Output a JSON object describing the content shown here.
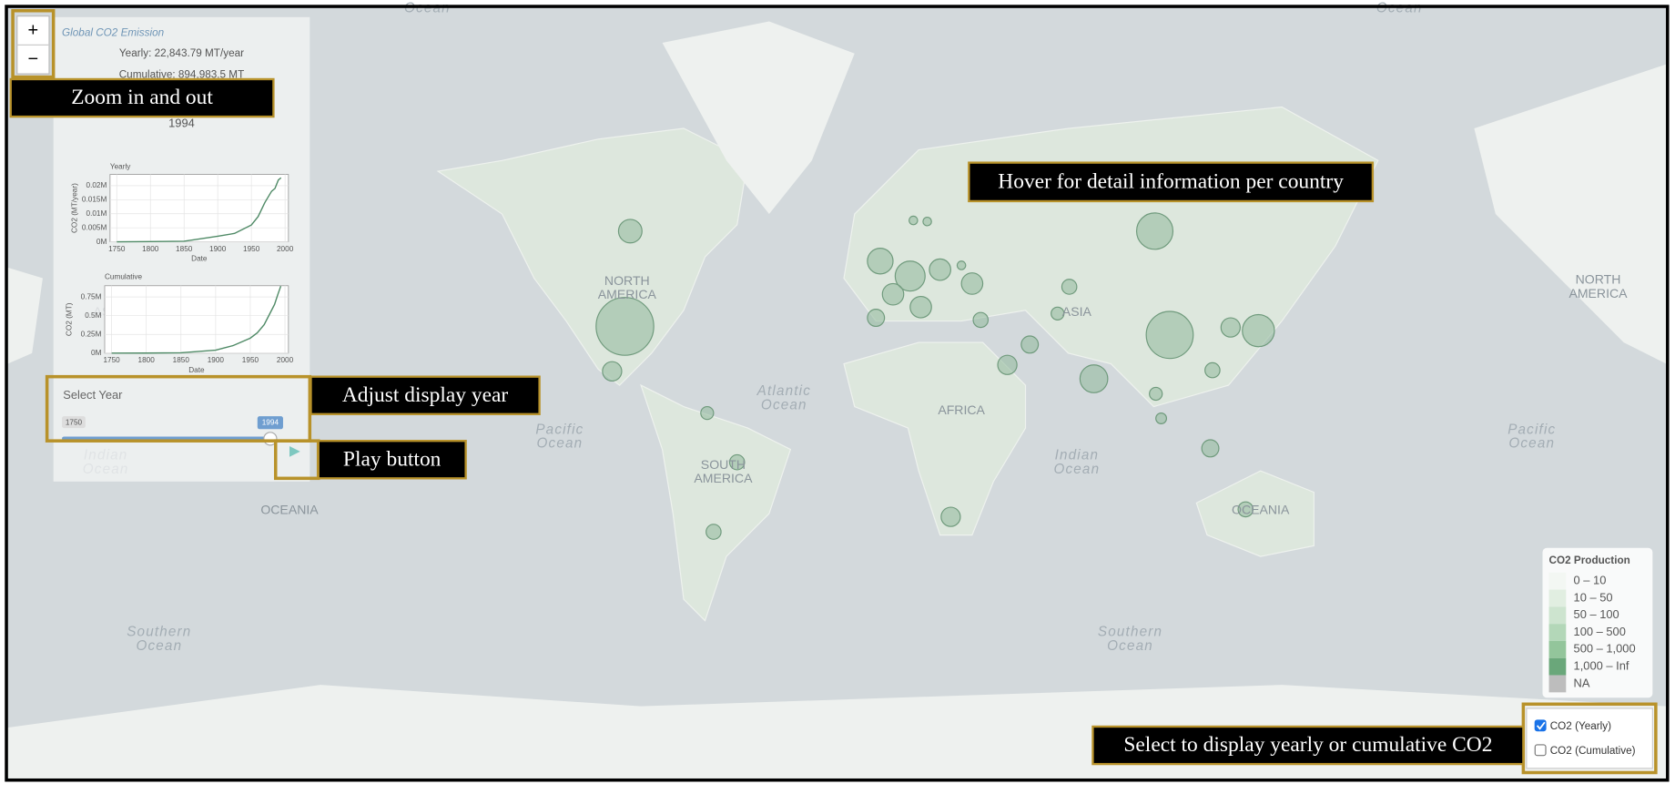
{
  "zoom": {
    "in": "+",
    "out": "−"
  },
  "panel": {
    "title": "Global CO2 Emission",
    "yearly": "Yearly: 22,843.79 MT/year",
    "cumulative": "Cumulative: 894,983.5 MT",
    "year": "1994",
    "charts": [
      {
        "type": "line",
        "title": "Yearly",
        "x_label": "Date",
        "y_label": "CO2 (MT/year)",
        "color": "#4f8a66",
        "x": [
          1750,
          1800,
          1850,
          1900,
          1925,
          1950,
          1960,
          1970,
          1980,
          1985,
          1990,
          1994
        ],
        "values": [
          0,
          0.0001,
          0.0002,
          0.002,
          0.003,
          0.006,
          0.009,
          0.014,
          0.018,
          0.019,
          0.022,
          0.0228
        ],
        "xlim": [
          1740,
          2005
        ],
        "xticks": [
          1750,
          1800,
          1850,
          1900,
          1950,
          2000
        ],
        "ylim": [
          0,
          0.024
        ],
        "yticks": [
          {
            "value": 0,
            "label": "0M"
          },
          {
            "value": 0.005,
            "label": "0.005M"
          },
          {
            "value": 0.01,
            "label": "0.01M"
          },
          {
            "value": 0.015,
            "label": "0.015M"
          },
          {
            "value": 0.02,
            "label": "0.02M"
          }
        ],
        "grid": true
      },
      {
        "type": "line",
        "title": "Cumulative",
        "x_label": "Date",
        "y_label": "CO2 (MT)",
        "color": "#4f8a66",
        "x": [
          1750,
          1800,
          1850,
          1900,
          1925,
          1950,
          1960,
          1970,
          1980,
          1985,
          1990,
          1994
        ],
        "values": [
          0,
          0.001,
          0.005,
          0.04,
          0.1,
          0.2,
          0.27,
          0.38,
          0.56,
          0.65,
          0.79,
          0.895
        ],
        "xlim": [
          1740,
          2005
        ],
        "xticks": [
          1750,
          1800,
          1850,
          1900,
          1950,
          2000
        ],
        "ylim": [
          0,
          0.9
        ],
        "yticks": [
          {
            "value": 0,
            "label": "0M"
          },
          {
            "value": 0.25,
            "label": "0.25M"
          },
          {
            "value": 0.5,
            "label": "0.5M"
          },
          {
            "value": 0.75,
            "label": "0.75M"
          }
        ],
        "grid": true
      }
    ]
  },
  "slider": {
    "label": "Select Year",
    "min": "1750",
    "value": "1994"
  },
  "map_labels": [
    {
      "lines": [
        "Ocean"
      ],
      "kind": "ocean"
    },
    {
      "lines": [
        "Ocean"
      ],
      "kind": "ocean"
    },
    {
      "lines": [
        "NORTH",
        "AMERICA"
      ],
      "kind": "land"
    },
    {
      "lines": [
        "NORTH",
        "AMERICA"
      ],
      "kind": "land"
    },
    {
      "lines": [
        "ASIA"
      ],
      "kind": "land"
    },
    {
      "lines": [
        "ASIA"
      ],
      "kind": "land"
    },
    {
      "lines": [
        "AFRICA"
      ],
      "kind": "land"
    },
    {
      "lines": [
        "SOUTH",
        "AMERICA"
      ],
      "kind": "land"
    },
    {
      "lines": [
        "OCEANIA"
      ],
      "kind": "land"
    },
    {
      "lines": [
        "OCEANIA"
      ],
      "kind": "land"
    },
    {
      "lines": [
        "Atlantic",
        "Ocean"
      ],
      "kind": "ocean"
    },
    {
      "lines": [
        "Pacific",
        "Ocean"
      ],
      "kind": "ocean"
    },
    {
      "lines": [
        "Pacific",
        "Ocean"
      ],
      "kind": "ocean"
    },
    {
      "lines": [
        "Indian",
        "Ocean"
      ],
      "kind": "ocean"
    },
    {
      "lines": [
        "Indian",
        "Ocean"
      ],
      "kind": "ocean"
    },
    {
      "lines": [
        "Southern",
        "Ocean"
      ],
      "kind": "ocean"
    },
    {
      "lines": [
        "Southern",
        "Ocean"
      ],
      "kind": "ocean"
    }
  ],
  "legend": {
    "title": "CO2 Production",
    "items": [
      {
        "label": "0 – 10",
        "color": "#f3f7f3"
      },
      {
        "label": "10 – 50",
        "color": "#e1eee1"
      },
      {
        "label": "50 – 100",
        "color": "#cde4cf"
      },
      {
        "label": "100 – 500",
        "color": "#b3d7b8"
      },
      {
        "label": "500 – 1,000",
        "color": "#93c59b"
      },
      {
        "label": "1,000 – Inf",
        "color": "#6aa77a"
      },
      {
        "label": "NA",
        "color": "#bdbdbd"
      }
    ]
  },
  "layers": [
    {
      "label": "CO2 (Yearly)",
      "checked": true
    },
    {
      "label": "CO2 (Cumulative)",
      "checked": false
    }
  ],
  "annotations": [
    "Zoom in and out",
    "Hover for detail information per country",
    "Adjust display year",
    "Play button",
    "Select to display yearly or cumulative CO2"
  ]
}
